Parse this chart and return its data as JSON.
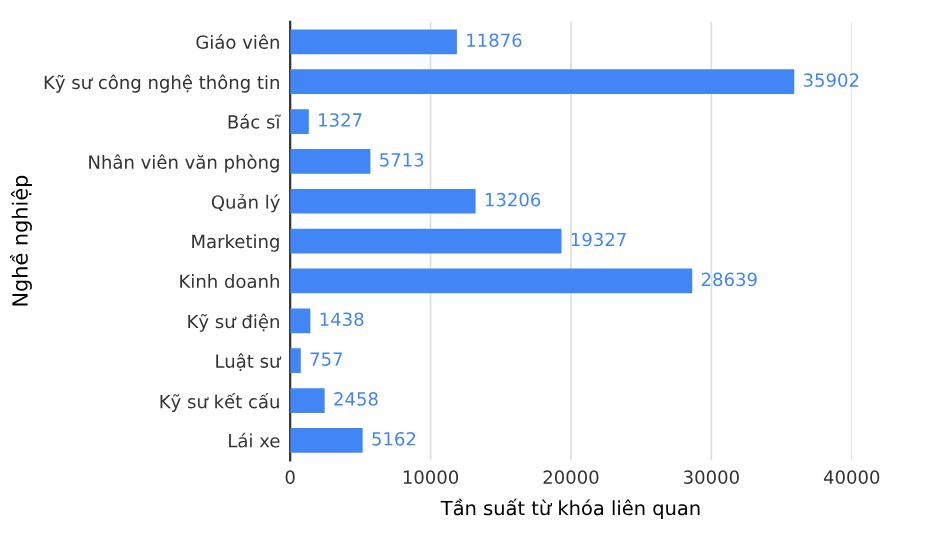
{
  "chart_data": {
    "type": "bar",
    "orientation": "horizontal",
    "xlabel": "Tần suất từ khóa liên quan",
    "ylabel": "Nghề nghiệp",
    "categories": [
      "Giáo viên",
      "Kỹ sư công nghệ thông tin",
      "Bác sĩ",
      "Nhân viên văn phòng",
      "Quản lý",
      "Marketing",
      "Kinh doanh",
      "Kỹ sư điện",
      "Luật sư",
      "Kỹ sư kết cấu",
      "Lái xe"
    ],
    "values": [
      11876,
      35902,
      1327,
      5713,
      13206,
      19327,
      28639,
      1438,
      757,
      2458,
      5162
    ],
    "color": "#4285f4",
    "xlim": [
      0,
      40000
    ],
    "xticks": [
      0,
      10000,
      20000,
      30000,
      40000
    ],
    "grid": "x",
    "data_labels": true
  }
}
